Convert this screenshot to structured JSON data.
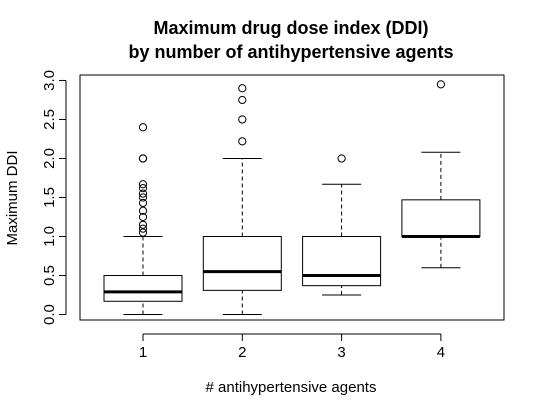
{
  "chart_data": {
    "type": "boxplot",
    "title": [
      "Maximum drug dose index (DDI)",
      "by number of antihypertensive agents"
    ],
    "xlabel": "# antihypertensive agents",
    "ylabel": "Maximum DDI",
    "ylim": [
      -0.07,
      3.07
    ],
    "y_ticks": [
      "0.0",
      "0.5",
      "1.0",
      "1.5",
      "2.0",
      "2.5",
      "3.0"
    ],
    "categories": [
      "1",
      "2",
      "3",
      "4"
    ],
    "boxes": [
      {
        "category": "1",
        "whisker_low": 0.0,
        "q1": 0.17,
        "median": 0.29,
        "q3": 0.5,
        "whisker_high": 1.0,
        "outliers": [
          1.05,
          1.1,
          1.15,
          1.25,
          1.33,
          1.43,
          1.5,
          1.55,
          1.62,
          1.67,
          2.0,
          2.0,
          2.4
        ]
      },
      {
        "category": "2",
        "whisker_low": 0.0,
        "q1": 0.31,
        "median": 0.55,
        "q3": 1.0,
        "whisker_high": 2.0,
        "outliers": [
          2.22,
          2.5,
          2.75,
          2.9
        ]
      },
      {
        "category": "3",
        "whisker_low": 0.25,
        "q1": 0.37,
        "median": 0.5,
        "q3": 1.0,
        "whisker_high": 1.67,
        "outliers": [
          2.0
        ]
      },
      {
        "category": "4",
        "whisker_low": 0.6,
        "q1": 1.0,
        "median": 1.0,
        "q3": 1.47,
        "whisker_high": 2.08,
        "outliers": [
          2.95
        ]
      }
    ]
  }
}
